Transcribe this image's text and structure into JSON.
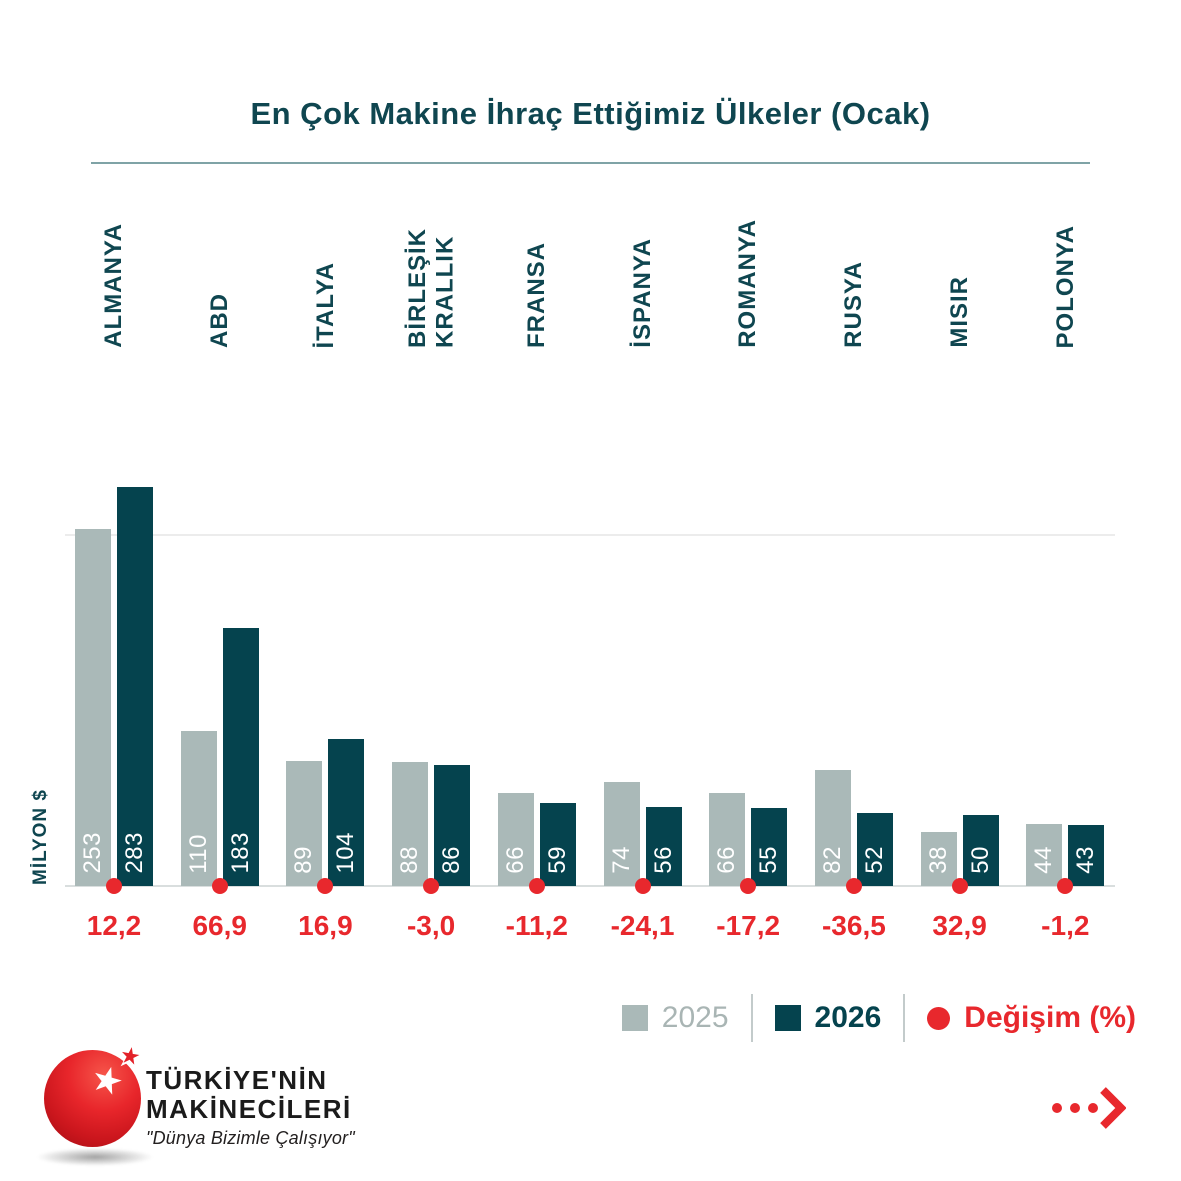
{
  "title": "En Çok Makine İhraç Ettiğimiz Ülkeler (Ocak)",
  "chart_data": {
    "type": "bar",
    "title": "En Çok Makine İhraç Ettiğimiz Ülkeler (Ocak)",
    "ylabel": "MİLYON $",
    "categories": [
      "ALMANYA",
      "ABD",
      "İTALYA",
      "BİRLEŞİK\nKRALLIK",
      "FRANSA",
      "İSPANYA",
      "ROMANYA",
      "RUSYA",
      "MISIR",
      "POLONYA"
    ],
    "series": [
      {
        "name": "2025",
        "values": [
          253,
          110,
          89,
          88,
          66,
          74,
          66,
          82,
          38,
          44
        ]
      },
      {
        "name": "2026",
        "values": [
          283,
          183,
          104,
          86,
          59,
          56,
          55,
          52,
          50,
          43
        ]
      }
    ],
    "change": {
      "name": "Değişim (%)",
      "values": [
        12.2,
        66.9,
        16.9,
        -3.0,
        -11.2,
        -24.1,
        -17.2,
        -36.5,
        32.9,
        -1.2
      ],
      "display": [
        "12,2",
        "66,9",
        "16,9",
        "-3,0",
        "-11,2",
        "-24,1",
        "-17,2",
        "-36,5",
        "32,9",
        "-1,2"
      ]
    },
    "ylim": [
      0,
      300
    ],
    "gridline_value": 250,
    "grid": "single horizontal gridline",
    "legend_position": "bottom-right"
  },
  "logo": {
    "line1": "TÜRKİYE'NİN",
    "line2": "MAKİNECİLERİ",
    "tagline": "\"Dünya Bizimle Çalışıyor\""
  },
  "icons": {
    "more_arrow": "ellipsis-chevron-right",
    "stars": "star"
  },
  "colors": {
    "bar_2025": "#aab9b8",
    "bar_2026": "#05434e",
    "accent_red": "#e8282d",
    "heading_text": "#0f4650",
    "divider": "#7fa3a6",
    "gridline": "#ececec",
    "baseline": "#d9dede",
    "legend_2025_text": "#a9b5b4",
    "logo_text": "#1b1b1b"
  }
}
